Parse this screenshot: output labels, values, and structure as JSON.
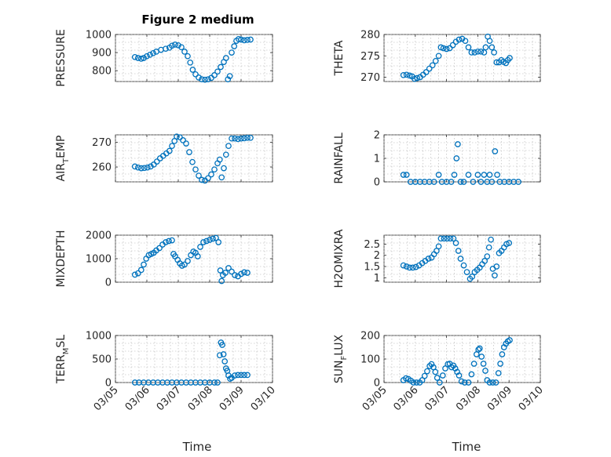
{
  "figure": {
    "title": "Figure 2 medium",
    "marker_color": "#0072bd",
    "x_tick_labels": [
      "03/05",
      "03/06",
      "03/07",
      "03/08",
      "03/09",
      "03/10"
    ],
    "xlabel": "Time"
  },
  "chart_data": [
    {
      "type": "scatter",
      "title": "Figure 2 medium",
      "ylabel": "PRESSURE",
      "ylim": [
        740,
        1000
      ],
      "yticks": [
        800,
        900,
        1000
      ],
      "xlim": [
        5,
        10
      ],
      "grid": true,
      "points": [
        [
          5.62,
          875
        ],
        [
          5.72,
          870
        ],
        [
          5.82,
          866
        ],
        [
          5.9,
          870
        ],
        [
          6.0,
          880
        ],
        [
          6.1,
          888
        ],
        [
          6.2,
          897
        ],
        [
          6.3,
          905
        ],
        [
          6.45,
          915
        ],
        [
          6.6,
          921
        ],
        [
          6.72,
          927
        ],
        [
          6.8,
          938
        ],
        [
          6.9,
          944
        ],
        [
          7.0,
          940
        ],
        [
          7.1,
          930
        ],
        [
          7.2,
          905
        ],
        [
          7.3,
          880
        ],
        [
          7.38,
          845
        ],
        [
          7.46,
          805
        ],
        [
          7.55,
          780
        ],
        [
          7.65,
          762
        ],
        [
          7.75,
          752
        ],
        [
          7.85,
          750
        ],
        [
          7.95,
          752
        ],
        [
          8.05,
          760
        ],
        [
          8.15,
          775
        ],
        [
          8.25,
          795
        ],
        [
          8.35,
          820
        ],
        [
          8.45,
          848
        ],
        [
          8.52,
          870
        ],
        [
          8.58,
          752
        ],
        [
          8.64,
          770
        ],
        [
          8.7,
          900
        ],
        [
          8.78,
          935
        ],
        [
          8.85,
          965
        ],
        [
          8.92,
          975
        ],
        [
          9.0,
          972
        ],
        [
          9.1,
          968
        ],
        [
          9.2,
          970
        ],
        [
          9.3,
          972
        ]
      ]
    },
    {
      "type": "scatter",
      "ylabel": "THETA",
      "ylim": [
        269,
        280
      ],
      "yticks": [
        270,
        275,
        280
      ],
      "xlim": [
        5,
        10
      ],
      "grid": true,
      "points": [
        [
          5.62,
          270.5
        ],
        [
          5.72,
          270.6
        ],
        [
          5.82,
          270.4
        ],
        [
          5.9,
          270.2
        ],
        [
          5.98,
          269.6
        ],
        [
          6.06,
          269.8
        ],
        [
          6.15,
          270.0
        ],
        [
          6.25,
          270.6
        ],
        [
          6.35,
          271.2
        ],
        [
          6.45,
          272.0
        ],
        [
          6.55,
          272.8
        ],
        [
          6.65,
          273.8
        ],
        [
          6.75,
          275.0
        ],
        [
          6.82,
          277.0
        ],
        [
          6.9,
          276.8
        ],
        [
          7.0,
          276.6
        ],
        [
          7.1,
          276.8
        ],
        [
          7.2,
          277.5
        ],
        [
          7.3,
          278.3
        ],
        [
          7.4,
          278.8
        ],
        [
          7.5,
          279.0
        ],
        [
          7.6,
          278.5
        ],
        [
          7.7,
          277.0
        ],
        [
          7.8,
          275.8
        ],
        [
          7.9,
          275.8
        ],
        [
          8.0,
          276.0
        ],
        [
          8.1,
          276.0
        ],
        [
          8.2,
          275.8
        ],
        [
          8.25,
          277.0
        ],
        [
          8.32,
          279.5
        ],
        [
          8.38,
          278.5
        ],
        [
          8.45,
          277.0
        ],
        [
          8.52,
          275.8
        ],
        [
          8.6,
          273.5
        ],
        [
          8.68,
          273.5
        ],
        [
          8.75,
          274.0
        ],
        [
          8.82,
          273.6
        ],
        [
          8.9,
          273.3
        ],
        [
          8.96,
          274.0
        ],
        [
          9.02,
          274.5
        ]
      ]
    },
    {
      "type": "scatter",
      "ylabel": "AIR_TEMP",
      "ylim": [
        254,
        273
      ],
      "yticks": [
        260,
        270
      ],
      "xlim": [
        5,
        10
      ],
      "grid": true,
      "points": [
        [
          5.62,
          260.2
        ],
        [
          5.72,
          259.8
        ],
        [
          5.82,
          259.5
        ],
        [
          5.92,
          259.6
        ],
        [
          6.02,
          259.8
        ],
        [
          6.12,
          260.2
        ],
        [
          6.22,
          261.0
        ],
        [
          6.32,
          262.2
        ],
        [
          6.42,
          263.5
        ],
        [
          6.52,
          264.5
        ],
        [
          6.62,
          265.5
        ],
        [
          6.72,
          266.5
        ],
        [
          6.8,
          268.5
        ],
        [
          6.88,
          270.5
        ],
        [
          6.95,
          272.3
        ],
        [
          7.05,
          272.0
        ],
        [
          7.15,
          270.8
        ],
        [
          7.25,
          269.5
        ],
        [
          7.35,
          266.0
        ],
        [
          7.45,
          262.0
        ],
        [
          7.55,
          259.0
        ],
        [
          7.65,
          256.5
        ],
        [
          7.75,
          254.8
        ],
        [
          7.85,
          254.5
        ],
        [
          7.95,
          255.5
        ],
        [
          8.05,
          257.0
        ],
        [
          8.15,
          259.0
        ],
        [
          8.25,
          261.5
        ],
        [
          8.32,
          263.0
        ],
        [
          8.38,
          255.8
        ],
        [
          8.45,
          259.5
        ],
        [
          8.52,
          265.0
        ],
        [
          8.6,
          268.5
        ],
        [
          8.7,
          271.5
        ],
        [
          8.8,
          271.5
        ],
        [
          8.9,
          271.3
        ],
        [
          9.0,
          271.5
        ],
        [
          9.1,
          271.6
        ],
        [
          9.2,
          271.8
        ],
        [
          9.3,
          271.8
        ]
      ]
    },
    {
      "type": "scatter",
      "ylabel": "RAINFALL",
      "ylim": [
        0,
        2
      ],
      "yticks": [
        0,
        1,
        2
      ],
      "xlim": [
        5,
        10
      ],
      "grid": true,
      "points": [
        [
          5.62,
          0.3
        ],
        [
          5.72,
          0.3
        ],
        [
          5.85,
          0.0
        ],
        [
          6.0,
          0.0
        ],
        [
          6.15,
          0.0
        ],
        [
          6.3,
          0.0
        ],
        [
          6.45,
          0.0
        ],
        [
          6.6,
          0.0
        ],
        [
          6.75,
          0.3
        ],
        [
          6.85,
          0.0
        ],
        [
          7.0,
          0.0
        ],
        [
          7.15,
          0.0
        ],
        [
          7.25,
          0.3
        ],
        [
          7.32,
          1.0
        ],
        [
          7.36,
          1.6
        ],
        [
          7.45,
          0.0
        ],
        [
          7.55,
          0.0
        ],
        [
          7.7,
          0.3
        ],
        [
          7.85,
          0.0
        ],
        [
          8.0,
          0.3
        ],
        [
          8.1,
          0.0
        ],
        [
          8.2,
          0.3
        ],
        [
          8.3,
          0.0
        ],
        [
          8.38,
          0.3
        ],
        [
          8.45,
          0.0
        ],
        [
          8.55,
          1.3
        ],
        [
          8.62,
          0.3
        ],
        [
          8.7,
          0.0
        ],
        [
          8.85,
          0.0
        ],
        [
          9.0,
          0.0
        ],
        [
          9.15,
          0.0
        ],
        [
          9.3,
          0.0
        ]
      ]
    },
    {
      "type": "scatter",
      "ylabel": "MIXDEPTH",
      "ylim": [
        0,
        2000
      ],
      "yticks": [
        0,
        1000,
        2000
      ],
      "xlim": [
        5,
        10
      ],
      "grid": true,
      "points": [
        [
          5.62,
          320
        ],
        [
          5.72,
          380
        ],
        [
          5.82,
          520
        ],
        [
          5.9,
          750
        ],
        [
          5.98,
          1000
        ],
        [
          6.06,
          1150
        ],
        [
          6.14,
          1200
        ],
        [
          6.22,
          1250
        ],
        [
          6.3,
          1350
        ],
        [
          6.4,
          1450
        ],
        [
          6.5,
          1600
        ],
        [
          6.6,
          1700
        ],
        [
          6.7,
          1750
        ],
        [
          6.8,
          1780
        ],
        [
          6.85,
          1200
        ],
        [
          6.9,
          1100
        ],
        [
          6.98,
          950
        ],
        [
          7.05,
          800
        ],
        [
          7.12,
          700
        ],
        [
          7.2,
          750
        ],
        [
          7.3,
          900
        ],
        [
          7.4,
          1150
        ],
        [
          7.48,
          1300
        ],
        [
          7.55,
          1250
        ],
        [
          7.62,
          1100
        ],
        [
          7.7,
          1500
        ],
        [
          7.8,
          1700
        ],
        [
          7.9,
          1750
        ],
        [
          8.0,
          1800
        ],
        [
          8.1,
          1850
        ],
        [
          8.2,
          1880
        ],
        [
          8.28,
          1700
        ],
        [
          8.34,
          500
        ],
        [
          8.38,
          50
        ],
        [
          8.42,
          300
        ],
        [
          8.5,
          400
        ],
        [
          8.6,
          600
        ],
        [
          8.7,
          450
        ],
        [
          8.8,
          300
        ],
        [
          8.9,
          250
        ],
        [
          9.0,
          350
        ],
        [
          9.1,
          420
        ],
        [
          9.2,
          400
        ]
      ]
    },
    {
      "type": "scatter",
      "ylabel": "H2OMIXRA",
      "ylim": [
        0.8,
        2.9
      ],
      "yticks": [
        1,
        1.5,
        2,
        2.5
      ],
      "xlim": [
        5,
        10
      ],
      "grid": true,
      "points": [
        [
          5.62,
          1.55
        ],
        [
          5.72,
          1.5
        ],
        [
          5.82,
          1.45
        ],
        [
          5.92,
          1.45
        ],
        [
          6.02,
          1.48
        ],
        [
          6.12,
          1.55
        ],
        [
          6.22,
          1.65
        ],
        [
          6.32,
          1.75
        ],
        [
          6.42,
          1.85
        ],
        [
          6.52,
          1.9
        ],
        [
          6.6,
          2.05
        ],
        [
          6.68,
          2.2
        ],
        [
          6.75,
          2.4
        ],
        [
          6.82,
          2.75
        ],
        [
          6.92,
          2.75
        ],
        [
          7.02,
          2.75
        ],
        [
          7.12,
          2.75
        ],
        [
          7.22,
          2.75
        ],
        [
          7.3,
          2.55
        ],
        [
          7.38,
          2.2
        ],
        [
          7.45,
          1.85
        ],
        [
          7.55,
          1.55
        ],
        [
          7.65,
          1.25
        ],
        [
          7.75,
          0.95
        ],
        [
          7.82,
          1.05
        ],
        [
          7.9,
          1.25
        ],
        [
          7.98,
          1.35
        ],
        [
          8.06,
          1.45
        ],
        [
          8.14,
          1.6
        ],
        [
          8.22,
          1.75
        ],
        [
          8.3,
          1.95
        ],
        [
          8.36,
          2.35
        ],
        [
          8.42,
          2.7
        ],
        [
          8.48,
          1.4
        ],
        [
          8.54,
          1.1
        ],
        [
          8.6,
          1.5
        ],
        [
          8.68,
          2.1
        ],
        [
          8.76,
          2.2
        ],
        [
          8.84,
          2.35
        ],
        [
          8.92,
          2.5
        ],
        [
          9.0,
          2.55
        ]
      ]
    },
    {
      "type": "scatter",
      "ylabel": "TERR_MSL",
      "ylim": [
        0,
        1000
      ],
      "yticks": [
        0,
        500,
        1000
      ],
      "xlim": [
        5,
        10
      ],
      "grid": true,
      "points": [
        [
          5.62,
          0
        ],
        [
          5.75,
          0
        ],
        [
          5.9,
          0
        ],
        [
          6.05,
          0
        ],
        [
          6.2,
          0
        ],
        [
          6.35,
          0
        ],
        [
          6.5,
          0
        ],
        [
          6.65,
          0
        ],
        [
          6.8,
          0
        ],
        [
          6.95,
          0
        ],
        [
          7.1,
          0
        ],
        [
          7.25,
          0
        ],
        [
          7.4,
          0
        ],
        [
          7.55,
          0
        ],
        [
          7.7,
          0
        ],
        [
          7.85,
          0
        ],
        [
          8.0,
          0
        ],
        [
          8.15,
          0
        ],
        [
          8.25,
          0
        ],
        [
          8.32,
          580
        ],
        [
          8.36,
          850
        ],
        [
          8.4,
          800
        ],
        [
          8.44,
          600
        ],
        [
          8.48,
          450
        ],
        [
          8.52,
          300
        ],
        [
          8.56,
          250
        ],
        [
          8.6,
          150
        ],
        [
          8.65,
          80
        ],
        [
          8.7,
          100
        ],
        [
          8.8,
          150
        ],
        [
          8.9,
          160
        ],
        [
          9.0,
          160
        ],
        [
          9.1,
          160
        ],
        [
          9.2,
          160
        ]
      ]
    },
    {
      "type": "scatter",
      "ylabel": "SUN_FLUX",
      "ylim": [
        0,
        200
      ],
      "yticks": [
        0,
        100,
        200
      ],
      "xlim": [
        5,
        10
      ],
      "grid": true,
      "points": [
        [
          5.62,
          10
        ],
        [
          5.7,
          18
        ],
        [
          5.78,
          15
        ],
        [
          5.86,
          8
        ],
        [
          5.94,
          0
        ],
        [
          6.04,
          0
        ],
        [
          6.14,
          0
        ],
        [
          6.22,
          10
        ],
        [
          6.3,
          28
        ],
        [
          6.38,
          48
        ],
        [
          6.46,
          70
        ],
        [
          6.52,
          78
        ],
        [
          6.58,
          65
        ],
        [
          6.64,
          45
        ],
        [
          6.7,
          20
        ],
        [
          6.78,
          0
        ],
        [
          6.88,
          30
        ],
        [
          6.96,
          60
        ],
        [
          7.04,
          78
        ],
        [
          7.1,
          80
        ],
        [
          7.16,
          65
        ],
        [
          7.22,
          72
        ],
        [
          7.28,
          60
        ],
        [
          7.34,
          45
        ],
        [
          7.4,
          30
        ],
        [
          7.48,
          5
        ],
        [
          7.58,
          0
        ],
        [
          7.7,
          0
        ],
        [
          7.8,
          35
        ],
        [
          7.88,
          80
        ],
        [
          7.96,
          120
        ],
        [
          8.02,
          140
        ],
        [
          8.06,
          145
        ],
        [
          8.12,
          110
        ],
        [
          8.18,
          80
        ],
        [
          8.24,
          50
        ],
        [
          8.3,
          10
        ],
        [
          8.38,
          0
        ],
        [
          8.48,
          0
        ],
        [
          8.58,
          0
        ],
        [
          8.66,
          40
        ],
        [
          8.72,
          80
        ],
        [
          8.78,
          120
        ],
        [
          8.84,
          150
        ],
        [
          8.9,
          165
        ],
        [
          8.96,
          175
        ],
        [
          9.02,
          180
        ]
      ]
    }
  ]
}
